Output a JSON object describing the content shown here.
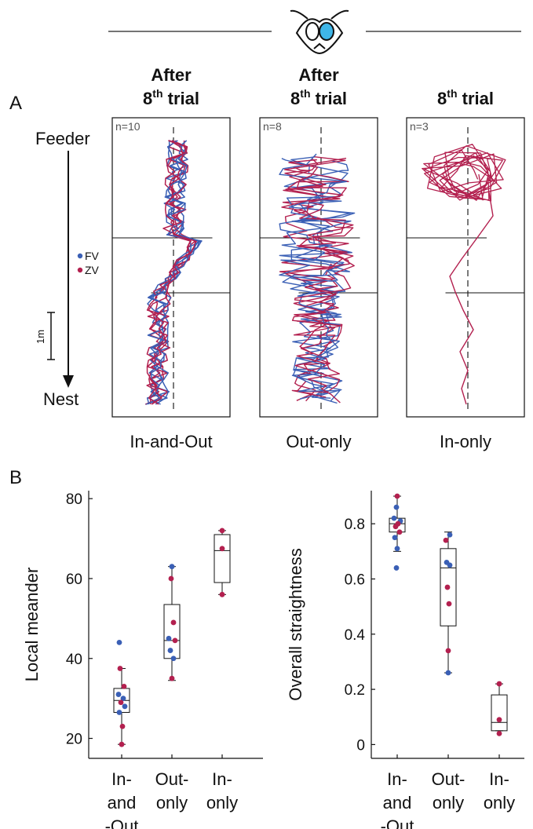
{
  "colors": {
    "fv": "#3a5fb5",
    "zv": "#b3204f"
  },
  "panel_a": {
    "label": "A",
    "axis": {
      "top": "Feeder",
      "bottom": "Nest",
      "scale": "1m"
    },
    "legend": [
      {
        "name": "FV",
        "color": "#3a5fb5"
      },
      {
        "name": "ZV",
        "color": "#b3204f"
      }
    ],
    "panels": [
      {
        "title_line1": "After",
        "title_line2": "8",
        "title_sup": "th",
        "title_rest": " trial",
        "n": "n=10",
        "caption": "In-and-Out"
      },
      {
        "title_line1": "After",
        "title_line2": "8",
        "title_sup": "th",
        "title_rest": " trial",
        "n": "n=8",
        "caption": "Out-only"
      },
      {
        "title_line1": "",
        "title_line2": "8",
        "title_sup": "th",
        "title_rest": " trial",
        "n": "n=3",
        "caption": "In-only"
      }
    ]
  },
  "panel_b": {
    "label": "B"
  },
  "chart_data": [
    {
      "type": "box",
      "title": "",
      "ylabel": "Local meander",
      "ylim": [
        15,
        82
      ],
      "yticks": [
        20,
        40,
        60,
        80
      ],
      "categories": [
        [
          "In-",
          "and",
          "-Out"
        ],
        [
          "Out-",
          "only"
        ],
        [
          "In-",
          "only"
        ]
      ],
      "boxes": [
        {
          "min": 18.5,
          "q1": 26.5,
          "median": 29.5,
          "q3": 32.5,
          "max": 37.5
        },
        {
          "min": 34.5,
          "q1": 40,
          "median": 44.5,
          "q3": 53.5,
          "max": 63
        },
        {
          "min": 56,
          "q1": 59,
          "median": 67,
          "q3": 71,
          "max": 72
        }
      ],
      "points": [
        [
          {
            "y": 44,
            "c": "FV",
            "j": -3
          },
          {
            "y": 37.5,
            "c": "ZV",
            "j": -2
          },
          {
            "y": 33,
            "c": "ZV",
            "j": 3
          },
          {
            "y": 31,
            "c": "FV",
            "j": -4
          },
          {
            "y": 30,
            "c": "FV",
            "j": 2
          },
          {
            "y": 29,
            "c": "ZV",
            "j": -1
          },
          {
            "y": 28,
            "c": "FV",
            "j": 4
          },
          {
            "y": 26.5,
            "c": "FV",
            "j": -3
          },
          {
            "y": 23,
            "c": "ZV",
            "j": 1
          },
          {
            "y": 18.5,
            "c": "ZV",
            "j": 0
          }
        ],
        [
          {
            "y": 63,
            "c": "FV",
            "j": 0
          },
          {
            "y": 60,
            "c": "ZV",
            "j": -1
          },
          {
            "y": 49,
            "c": "ZV",
            "j": 2
          },
          {
            "y": 45,
            "c": "FV",
            "j": -4
          },
          {
            "y": 44.5,
            "c": "ZV",
            "j": 4
          },
          {
            "y": 42,
            "c": "FV",
            "j": -2
          },
          {
            "y": 40,
            "c": "FV",
            "j": 2
          },
          {
            "y": 35,
            "c": "ZV",
            "j": 0
          }
        ],
        [
          {
            "y": 72,
            "c": "ZV",
            "j": 0
          },
          {
            "y": 67.5,
            "c": "ZV",
            "j": 0
          },
          {
            "y": 56,
            "c": "ZV",
            "j": 0
          }
        ]
      ]
    },
    {
      "type": "box",
      "title": "",
      "ylabel": "Overall straightness",
      "ylim": [
        -0.05,
        0.92
      ],
      "yticks": [
        0,
        0.2,
        0.4,
        0.6,
        0.8
      ],
      "categories": [
        [
          "In-",
          "and",
          "-Out"
        ],
        [
          "Out-",
          "only"
        ],
        [
          "In-",
          "only"
        ]
      ],
      "boxes": [
        {
          "min": 0.7,
          "q1": 0.77,
          "median": 0.8,
          "q3": 0.82,
          "max": 0.9
        },
        {
          "min": 0.26,
          "q1": 0.43,
          "median": 0.64,
          "q3": 0.71,
          "max": 0.77
        },
        {
          "min": 0.05,
          "q1": 0.05,
          "median": 0.08,
          "q3": 0.18,
          "max": 0.22
        }
      ],
      "points": [
        [
          {
            "y": 0.9,
            "c": "ZV",
            "j": 0
          },
          {
            "y": 0.86,
            "c": "FV",
            "j": -1
          },
          {
            "y": 0.82,
            "c": "FV",
            "j": -4
          },
          {
            "y": 0.81,
            "c": "FV",
            "j": 4
          },
          {
            "y": 0.8,
            "c": "ZV",
            "j": 1
          },
          {
            "y": 0.79,
            "c": "ZV",
            "j": -2
          },
          {
            "y": 0.77,
            "c": "ZV",
            "j": 3
          },
          {
            "y": 0.75,
            "c": "FV",
            "j": -3
          },
          {
            "y": 0.71,
            "c": "FV",
            "j": 0
          },
          {
            "y": 0.64,
            "c": "FV",
            "j": -1
          }
        ],
        [
          {
            "y": 0.76,
            "c": "FV",
            "j": 2
          },
          {
            "y": 0.74,
            "c": "ZV",
            "j": -3
          },
          {
            "y": 0.66,
            "c": "FV",
            "j": -2
          },
          {
            "y": 0.65,
            "c": "FV",
            "j": 2
          },
          {
            "y": 0.57,
            "c": "ZV",
            "j": -1
          },
          {
            "y": 0.51,
            "c": "ZV",
            "j": 1
          },
          {
            "y": 0.34,
            "c": "ZV",
            "j": 0
          },
          {
            "y": 0.26,
            "c": "FV",
            "j": 0
          }
        ],
        [
          {
            "y": 0.22,
            "c": "ZV",
            "j": 0
          },
          {
            "y": 0.09,
            "c": "ZV",
            "j": 0
          },
          {
            "y": 0.04,
            "c": "ZV",
            "j": 0
          }
        ]
      ]
    }
  ]
}
